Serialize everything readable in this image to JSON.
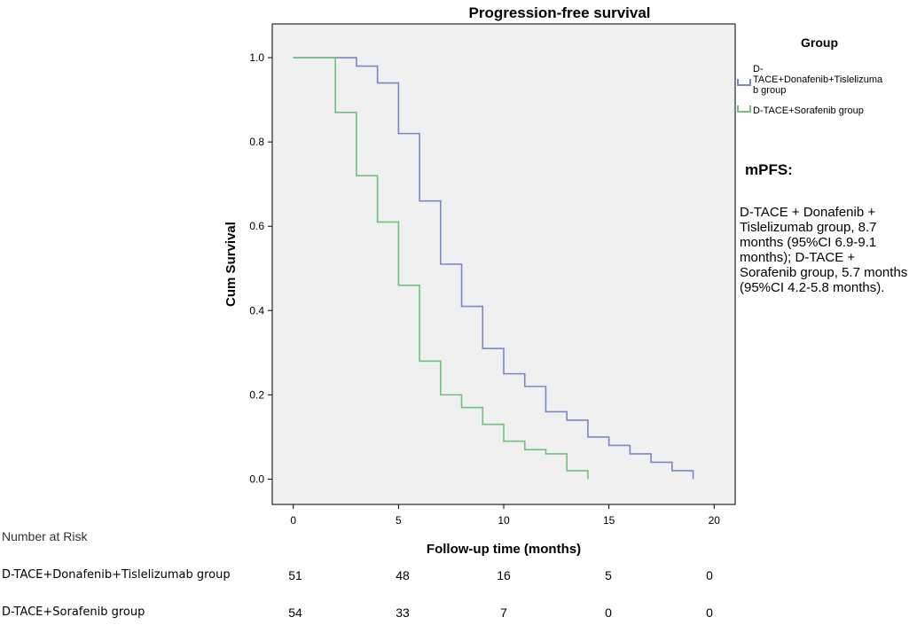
{
  "chart_data": {
    "type": "line",
    "title": "Progression-free survival",
    "xlabel": "Follow-up time (months)",
    "ylabel": "Cum Survival",
    "xlim": [
      -1,
      21
    ],
    "ylim": [
      -0.06,
      1.08
    ],
    "x_ticks": [
      0,
      5,
      10,
      15,
      20
    ],
    "x_tick_labels": [
      "0",
      "5",
      "10",
      "15",
      "20"
    ],
    "y_ticks": [
      0.0,
      0.2,
      0.4,
      0.6,
      0.8,
      1.0
    ],
    "y_tick_labels": [
      "0.0",
      "0.2",
      "0.4",
      "0.6",
      "0.8",
      "1.0"
    ],
    "legend_title": "Group",
    "legend_position": "right",
    "series": [
      {
        "name": "D-TACE+Donafenib+Tislelizumab group",
        "legend_lines": [
          "D-",
          "TACE+Donafenib+Tislelizuma",
          "b group"
        ],
        "color": "#7b86c8",
        "steps": [
          [
            0,
            1.0
          ],
          [
            3,
            0.98
          ],
          [
            4,
            0.94
          ],
          [
            5,
            0.82
          ],
          [
            6,
            0.66
          ],
          [
            7,
            0.51
          ],
          [
            8,
            0.41
          ],
          [
            9,
            0.31
          ],
          [
            10,
            0.25
          ],
          [
            11,
            0.22
          ],
          [
            12,
            0.16
          ],
          [
            13,
            0.14
          ],
          [
            14,
            0.1
          ],
          [
            15,
            0.08
          ],
          [
            16,
            0.06
          ],
          [
            17,
            0.04
          ],
          [
            18,
            0.02
          ],
          [
            19,
            0.0
          ]
        ]
      },
      {
        "name": "D-TACE+Sorafenib group",
        "legend_lines": [
          "D-TACE+Sorafenib group"
        ],
        "color": "#6fc17a",
        "steps": [
          [
            0,
            1.0
          ],
          [
            2,
            0.87
          ],
          [
            3,
            0.72
          ],
          [
            4,
            0.61
          ],
          [
            5,
            0.46
          ],
          [
            6,
            0.28
          ],
          [
            7,
            0.2
          ],
          [
            8,
            0.17
          ],
          [
            9,
            0.13
          ],
          [
            10,
            0.09
          ],
          [
            11,
            0.07
          ],
          [
            12,
            0.06
          ],
          [
            13,
            0.02
          ],
          [
            14,
            0.0
          ]
        ]
      }
    ]
  },
  "annotation": {
    "title": "mPFS:",
    "text": "D-TACE + Donafenib + Tislelizumab group, 8.7 months (95%CI 6.9-9.1 months); D-TACE + Sorafenib group, 5.7 months (95%CI 4.2-5.8 months)."
  },
  "risk_table": {
    "title": "Number at Risk",
    "rows": [
      {
        "label": "D-TACE+Donafenib+Tislelizumab group",
        "values": [
          "51",
          "48",
          "16",
          "5",
          "0"
        ]
      },
      {
        "label": "D-TACE+Sorafenib group",
        "values": [
          "54",
          "33",
          "7",
          "0",
          "0"
        ]
      }
    ]
  }
}
